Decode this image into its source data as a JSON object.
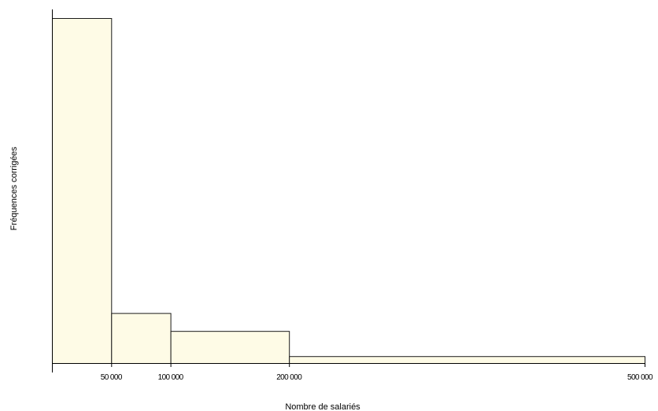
{
  "chart_data": {
    "type": "histogram",
    "title": "",
    "xlabel": "Nombre de salariés",
    "ylabel": "Fréquences corrigées",
    "xlim": [
      0,
      500000
    ],
    "ylim": [
      0,
      1
    ],
    "bins": [
      {
        "x0": 0,
        "x1": 50000,
        "value": 1.0
      },
      {
        "x0": 50000,
        "x1": 100000,
        "value": 0.145
      },
      {
        "x0": 100000,
        "x1": 200000,
        "value": 0.093
      },
      {
        "x0": 200000,
        "x1": 500000,
        "value": 0.02
      }
    ],
    "x_ticks": [
      {
        "value": 50000,
        "label": "50 000"
      },
      {
        "value": 100000,
        "label": "100 000"
      },
      {
        "value": 200000,
        "label": "200 000"
      },
      {
        "value": 500000,
        "label": "500 000"
      }
    ],
    "bar_fill": "#fefbe6",
    "bar_stroke": "#1a1a1a",
    "grid": false,
    "legend": "none"
  }
}
